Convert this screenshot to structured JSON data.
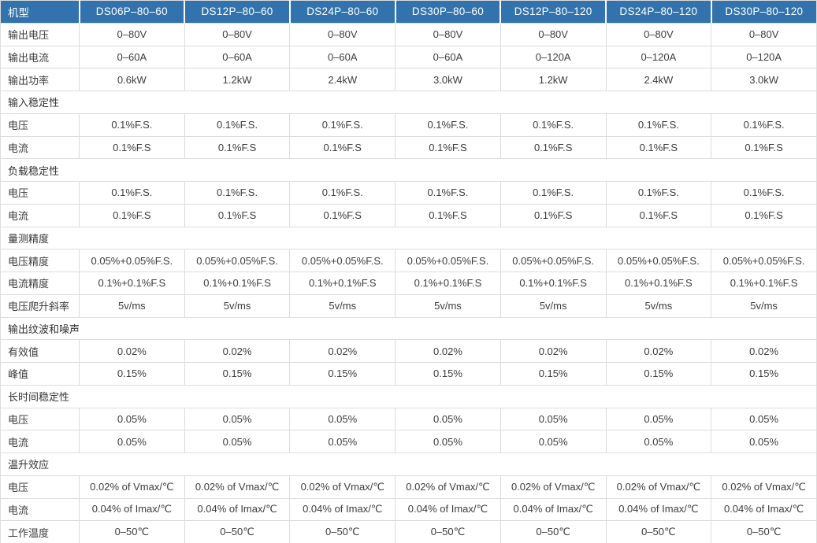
{
  "colors": {
    "header_bg": "#3273ad",
    "header_text": "#ffffff",
    "border": "#dcdcdc",
    "text": "#3c3c3c"
  },
  "table": {
    "corner_label": "机型",
    "models": [
      "DS06P–80–60",
      "DS12P–80–60",
      "DS24P–80–60",
      "DS30P–80–60",
      "DS12P–80–120",
      "DS24P–80–120",
      "DS30P–80–120"
    ],
    "rows": [
      {
        "type": "data",
        "label": "输出电压",
        "values": [
          "0–80V",
          "0–80V",
          "0–80V",
          "0–80V",
          "0–80V",
          "0–80V",
          "0–80V"
        ]
      },
      {
        "type": "data",
        "label": "输出电流",
        "values": [
          "0–60A",
          "0–60A",
          "0–60A",
          "0–60A",
          "0–120A",
          "0–120A",
          "0–120A"
        ]
      },
      {
        "type": "data",
        "label": "输出功率",
        "values": [
          "0.6kW",
          "1.2kW",
          "2.4kW",
          "3.0kW",
          "1.2kW",
          "2.4kW",
          "3.0kW"
        ]
      },
      {
        "type": "section",
        "label": "输入稳定性"
      },
      {
        "type": "data",
        "label": "电压",
        "values": [
          "0.1%F.S.",
          "0.1%F.S.",
          "0.1%F.S.",
          "0.1%F.S.",
          "0.1%F.S.",
          "0.1%F.S.",
          "0.1%F.S."
        ]
      },
      {
        "type": "data",
        "label": "电流",
        "values": [
          "0.1%F.S",
          "0.1%F.S",
          "0.1%F.S",
          "0.1%F.S",
          "0.1%F.S",
          "0.1%F.S",
          "0.1%F.S"
        ]
      },
      {
        "type": "section",
        "label": "负载稳定性"
      },
      {
        "type": "data",
        "label": "电压",
        "values": [
          "0.1%F.S.",
          "0.1%F.S.",
          "0.1%F.S.",
          "0.1%F.S.",
          "0.1%F.S.",
          "0.1%F.S.",
          "0.1%F.S."
        ]
      },
      {
        "type": "data",
        "label": "电流",
        "values": [
          "0.1%F.S",
          "0.1%F.S",
          "0.1%F.S",
          "0.1%F.S",
          "0.1%F.S",
          "0.1%F.S",
          "0.1%F.S"
        ]
      },
      {
        "type": "section",
        "label": "量测精度"
      },
      {
        "type": "data",
        "label": "电压精度",
        "values": [
          "0.05%+0.05%F.S.",
          "0.05%+0.05%F.S.",
          "0.05%+0.05%F.S.",
          "0.05%+0.05%F.S.",
          "0.05%+0.05%F.S.",
          "0.05%+0.05%F.S.",
          "0.05%+0.05%F.S."
        ]
      },
      {
        "type": "data",
        "label": "电流精度",
        "values": [
          "0.1%+0.1%F.S",
          "0.1%+0.1%F.S",
          "0.1%+0.1%F.S",
          "0.1%+0.1%F.S",
          "0.1%+0.1%F.S",
          "0.1%+0.1%F.S",
          "0.1%+0.1%F.S"
        ]
      },
      {
        "type": "data",
        "label": "电压爬升斜率",
        "values": [
          "5v/ms",
          "5v/ms",
          "5v/ms",
          "5v/ms",
          "5v/ms",
          "5v/ms",
          "5v/ms"
        ]
      },
      {
        "type": "section",
        "label": "输出纹波和噪声"
      },
      {
        "type": "data",
        "label": "有效值",
        "values": [
          "0.02%",
          "0.02%",
          "0.02%",
          "0.02%",
          "0.02%",
          "0.02%",
          "0.02%"
        ]
      },
      {
        "type": "data",
        "label": "峰值",
        "values": [
          "0.15%",
          "0.15%",
          "0.15%",
          "0.15%",
          "0.15%",
          "0.15%",
          "0.15%"
        ]
      },
      {
        "type": "section",
        "label": "长时间稳定性"
      },
      {
        "type": "data",
        "label": "电压",
        "values": [
          "0.05%",
          "0.05%",
          "0.05%",
          "0.05%",
          "0.05%",
          "0.05%",
          "0.05%"
        ]
      },
      {
        "type": "data",
        "label": "电流",
        "values": [
          "0.05%",
          "0.05%",
          "0.05%",
          "0.05%",
          "0.05%",
          "0.05%",
          "0.05%"
        ]
      },
      {
        "type": "section",
        "label": "温升效应"
      },
      {
        "type": "data",
        "label": "电压",
        "values": [
          "0.02% of Vmax/℃",
          "0.02% of Vmax/℃",
          "0.02% of Vmax/℃",
          "0.02% of Vmax/℃",
          "0.02% of Vmax/℃",
          "0.02% of Vmax/℃",
          "0.02% of Vmax/℃"
        ]
      },
      {
        "type": "data",
        "label": "电流",
        "values": [
          "0.04% of Imax/℃",
          "0.04% of Imax/℃",
          "0.04% of Imax/℃",
          "0.04% of Imax/℃",
          "0.04% of Imax/℃",
          "0.04% of Imax/℃",
          "0.04% of Imax/℃"
        ]
      },
      {
        "type": "data",
        "label": "工作温度",
        "values": [
          "0–50℃",
          "0–50℃",
          "0–50℃",
          "0–50℃",
          "0–50℃",
          "0–50℃",
          "0–50℃"
        ]
      }
    ]
  }
}
